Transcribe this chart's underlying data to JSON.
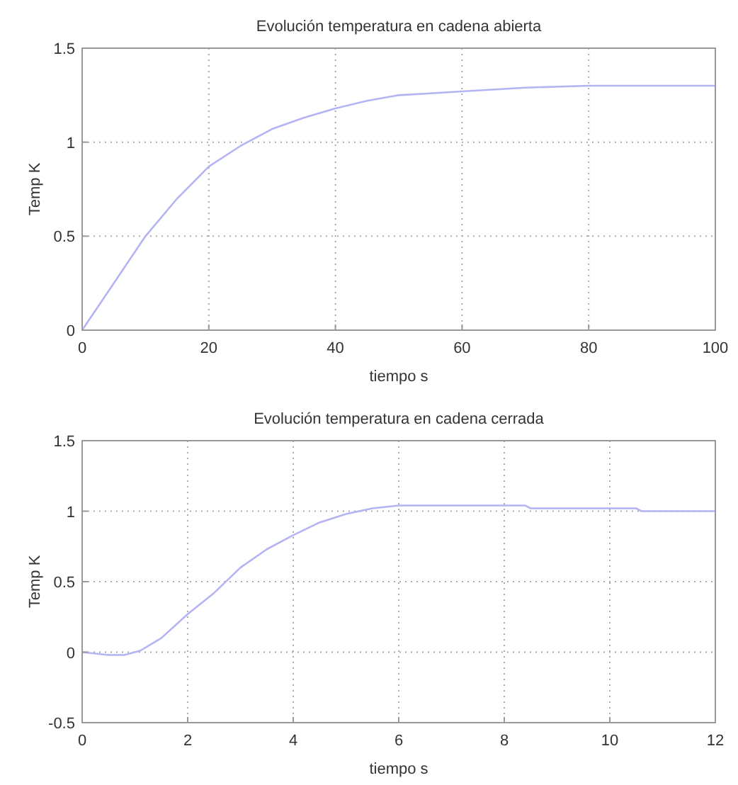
{
  "chart_data": [
    {
      "type": "line",
      "title": "Evolución temperatura en cadena abierta",
      "xlabel": "tiempo s",
      "ylabel": "Temp K",
      "xlim": [
        0,
        100
      ],
      "xticks": [
        0,
        20,
        40,
        60,
        80,
        100
      ],
      "ylim": [
        0,
        1.5
      ],
      "yticks": [
        0,
        0.5,
        1,
        1.5
      ],
      "grid": true,
      "line_style": "solid",
      "x": [
        0,
        5,
        10,
        15,
        20,
        25,
        30,
        35,
        40,
        45,
        50,
        55,
        60,
        70,
        80,
        90,
        100
      ],
      "series": [
        {
          "color": "#b4b4f4",
          "values": [
            0,
            0.25,
            0.5,
            0.7,
            0.87,
            0.98,
            1.07,
            1.13,
            1.18,
            1.22,
            1.25,
            1.26,
            1.27,
            1.29,
            1.3,
            1.3,
            1.3
          ]
        }
      ]
    },
    {
      "type": "line",
      "title": "Evolución temperatura en cadena cerrada",
      "xlabel": "tiempo s",
      "ylabel": "Temp K",
      "xlim": [
        0,
        12
      ],
      "xticks": [
        0,
        2,
        4,
        6,
        8,
        10,
        12
      ],
      "ylim": [
        -0.5,
        1.5
      ],
      "yticks": [
        -0.5,
        0,
        0.5,
        1,
        1.5
      ],
      "grid": true,
      "line_style": "solid",
      "x": [
        0,
        0.5,
        0.8,
        1.1,
        1.5,
        2,
        2.5,
        3,
        3.5,
        4,
        4.5,
        5,
        5.5,
        6,
        7,
        8,
        8.4,
        8.5,
        10,
        10.5,
        10.6,
        12
      ],
      "series": [
        {
          "color": "#b4b4f4",
          "values": [
            0,
            -0.02,
            -0.02,
            0.01,
            0.1,
            0.27,
            0.42,
            0.6,
            0.73,
            0.83,
            0.92,
            0.98,
            1.02,
            1.04,
            1.04,
            1.04,
            1.04,
            1.02,
            1.02,
            1.02,
            1.0,
            1.0
          ]
        }
      ]
    }
  ]
}
